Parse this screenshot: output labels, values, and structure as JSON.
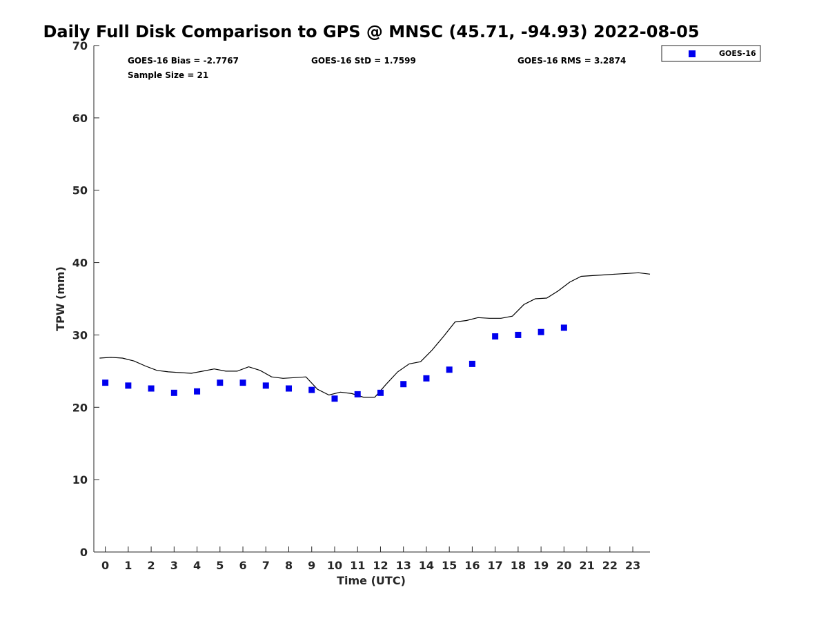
{
  "chart_data": {
    "type": "scatter",
    "title": "Daily Full Disk Comparison to GPS @ MNSC (45.71, -94.93) 2022-08-05",
    "xlabel": "Time (UTC)",
    "ylabel": "TPW (mm)",
    "xlim": [
      -0.5,
      23.75
    ],
    "ylim": [
      0,
      70
    ],
    "x_ticks": [
      "0",
      "1",
      "2",
      "3",
      "4",
      "5",
      "6",
      "7",
      "8",
      "9",
      "10",
      "11",
      "12",
      "13",
      "14",
      "15",
      "16",
      "17",
      "18",
      "19",
      "20",
      "21",
      "22",
      "23"
    ],
    "y_ticks": [
      "0",
      "10",
      "20",
      "30",
      "40",
      "50",
      "60",
      "70"
    ],
    "grid": false,
    "legend_position": "top-right",
    "stats": {
      "bias": "GOES-16 Bias = -2.7767",
      "std": "GOES-16 StD = 1.7599",
      "rms": "GOES-16 RMS = 3.2874",
      "sample_size": "Sample Size = 21"
    },
    "series": [
      {
        "name": "GOES-16",
        "kind": "scatter",
        "color": "#0000ee",
        "marker": "square",
        "x": [
          0,
          1,
          2,
          3,
          4,
          5,
          6,
          7,
          8,
          9,
          10,
          11,
          12,
          13,
          14,
          15,
          16,
          17,
          18,
          19,
          20
        ],
        "y": [
          23.4,
          23.0,
          22.6,
          22.0,
          22.2,
          23.4,
          23.4,
          23.0,
          22.6,
          22.4,
          21.2,
          21.8,
          22.0,
          23.2,
          24.0,
          25.2,
          26.0,
          29.8,
          30.0,
          30.4,
          31.0
        ]
      },
      {
        "kind": "line",
        "color": "#000000",
        "x": [
          -0.25,
          0.25,
          0.75,
          1.25,
          1.75,
          2.25,
          2.75,
          3.25,
          3.75,
          4.25,
          4.75,
          5.25,
          5.75,
          6.25,
          6.75,
          7.25,
          7.75,
          8.25,
          8.75,
          9.25,
          9.75,
          10.25,
          10.75,
          11.25,
          11.75,
          12.25,
          12.75,
          13.25,
          13.75,
          14.25,
          14.75,
          15.25,
          15.75,
          16.25,
          16.75,
          17.25,
          17.75,
          18.25,
          18.75,
          19.25,
          19.75,
          20.25,
          20.75,
          21.25,
          21.75,
          22.25,
          22.75,
          23.25,
          23.75
        ],
        "y": [
          26.8,
          26.9,
          26.8,
          26.4,
          25.7,
          25.1,
          24.9,
          24.8,
          24.7,
          25.0,
          25.3,
          25.0,
          25.0,
          25.6,
          25.1,
          24.2,
          24.0,
          24.1,
          24.2,
          22.5,
          21.7,
          22.1,
          21.9,
          21.4,
          21.4,
          23.2,
          24.9,
          26.0,
          26.3,
          27.9,
          29.8,
          31.8,
          32.0,
          32.4,
          32.3,
          32.3,
          32.6,
          34.2,
          35.0,
          35.1,
          36.1,
          37.3,
          38.1,
          38.2,
          38.3,
          38.4,
          38.5,
          38.6,
          38.4
        ]
      }
    ]
  }
}
